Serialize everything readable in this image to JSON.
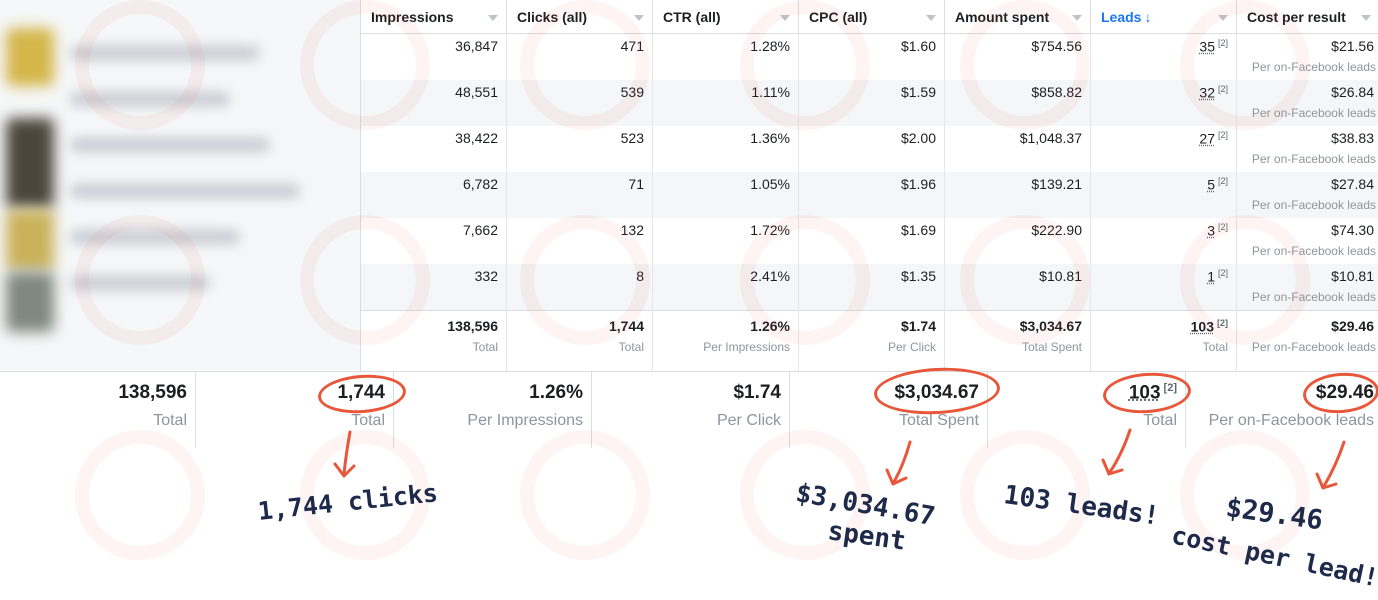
{
  "columns": [
    {
      "label": "Impressions"
    },
    {
      "label": "Clicks (all)"
    },
    {
      "label": "CTR (all)"
    },
    {
      "label": "CPC (all)"
    },
    {
      "label": "Amount spent"
    },
    {
      "label": "Leads",
      "sort_indicator": "↓"
    },
    {
      "label": "Cost per result"
    }
  ],
  "rows": [
    {
      "impressions": "36,847",
      "clicks": "471",
      "ctr": "1.28%",
      "cpc": "$1.60",
      "spent": "$754.56",
      "leads": "35",
      "leads_note": "[2]",
      "cpr": "$21.56",
      "cpr_sub": "Per on-Facebook leads"
    },
    {
      "impressions": "48,551",
      "clicks": "539",
      "ctr": "1.11%",
      "cpc": "$1.59",
      "spent": "$858.82",
      "leads": "32",
      "leads_note": "[2]",
      "cpr": "$26.84",
      "cpr_sub": "Per on-Facebook leads"
    },
    {
      "impressions": "38,422",
      "clicks": "523",
      "ctr": "1.36%",
      "cpc": "$2.00",
      "spent": "$1,048.37",
      "leads": "27",
      "leads_note": "[2]",
      "cpr": "$38.83",
      "cpr_sub": "Per on-Facebook leads"
    },
    {
      "impressions": "6,782",
      "clicks": "71",
      "ctr": "1.05%",
      "cpc": "$1.96",
      "spent": "$139.21",
      "leads": "5",
      "leads_note": "[2]",
      "cpr": "$27.84",
      "cpr_sub": "Per on-Facebook leads"
    },
    {
      "impressions": "7,662",
      "clicks": "132",
      "ctr": "1.72%",
      "cpc": "$1.69",
      "spent": "$222.90",
      "leads": "3",
      "leads_note": "[2]",
      "cpr": "$74.30",
      "cpr_sub": "Per on-Facebook leads"
    },
    {
      "impressions": "332",
      "clicks": "8",
      "ctr": "2.41%",
      "cpc": "$1.35",
      "spent": "$10.81",
      "leads": "1",
      "leads_note": "[2]",
      "cpr": "$10.81",
      "cpr_sub": "Per on-Facebook leads"
    }
  ],
  "totals": {
    "impressions": "138,596",
    "impressions_sub": "Total",
    "clicks": "1,744",
    "clicks_sub": "Total",
    "ctr": "1.26%",
    "ctr_sub": "Per Impressions",
    "cpc": "$1.74",
    "cpc_sub": "Per Click",
    "spent": "$3,034.67",
    "spent_sub": "Total Spent",
    "leads": "103",
    "leads_note": "[2]",
    "leads_sub": "Total",
    "cpr": "$29.46",
    "cpr_sub": "Per on-Facebook leads"
  },
  "annotations": {
    "clicks": "1,744 clicks",
    "spent_line1": "$3,034.67",
    "spent_line2": "spent",
    "leads": "103 leads!",
    "cpr_line1": "$29.46",
    "cpr_line2": "cost per lead!"
  },
  "colors": {
    "annotation_red": "#e8573a",
    "annotation_ink": "#1e2a4a",
    "sort_blue": "#1877f2",
    "muted_text": "#90949c"
  }
}
